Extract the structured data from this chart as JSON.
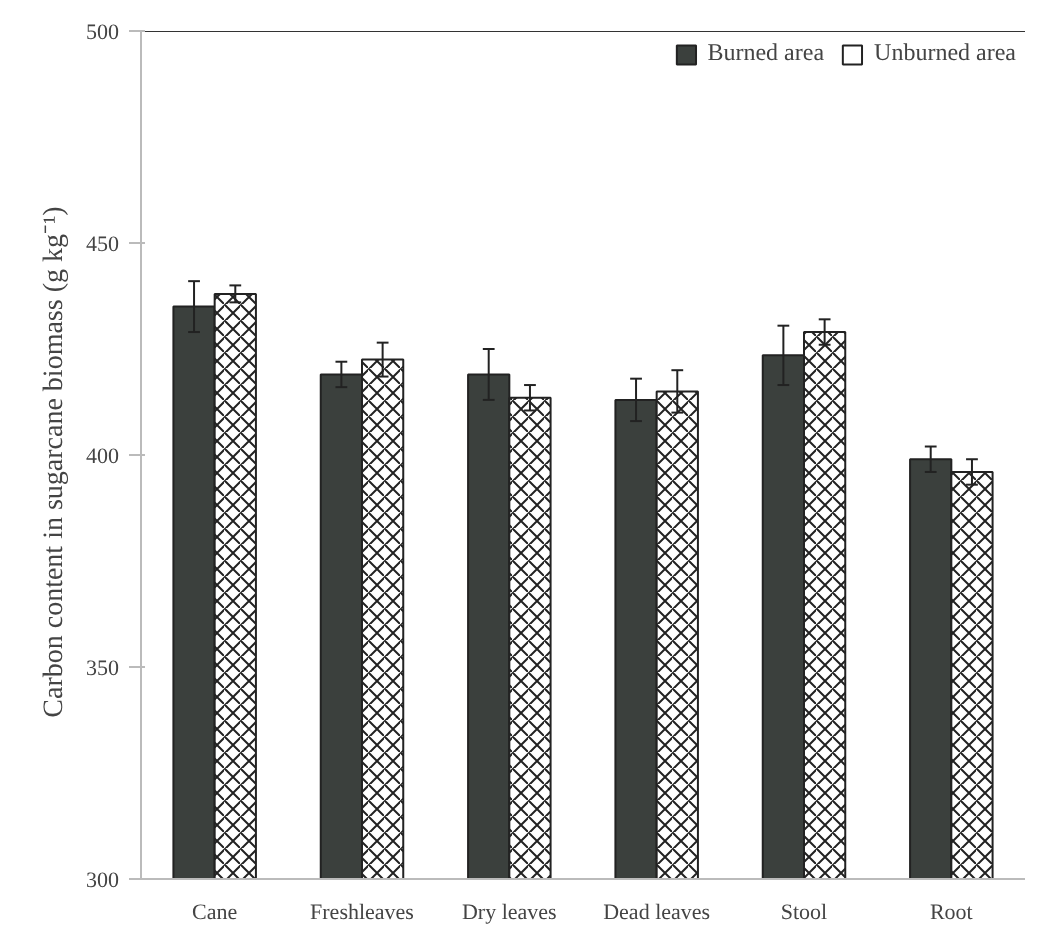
{
  "chart_data": {
    "type": "bar",
    "ylabel": "Carbon content in  sugarcane biomass  (g kg⁻¹)",
    "categories": [
      "Cane",
      "Freshleaves",
      "Dry leaves",
      "Dead leaves",
      "Stool",
      "Root"
    ],
    "series": [
      {
        "name": "Burned area",
        "color": "#3b403d",
        "values": [
          435,
          419,
          419,
          413,
          423.5,
          399
        ],
        "errors": [
          6,
          3,
          6,
          5,
          7,
          3
        ]
      },
      {
        "name": "Unburned area",
        "color": "#ffffff",
        "values": [
          438,
          422.5,
          413.5,
          415,
          429,
          396
        ],
        "errors": [
          2,
          4,
          3,
          5,
          3,
          3
        ]
      }
    ],
    "ylim": [
      300,
      500
    ],
    "yticks": [
      300,
      350,
      400,
      450,
      500
    ],
    "grid": false,
    "legend": "top right"
  }
}
